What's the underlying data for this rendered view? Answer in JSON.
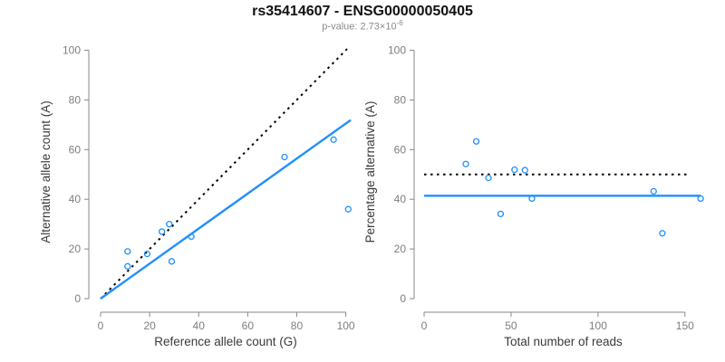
{
  "header": {
    "title": "rs35414607 - ENSG00000050405",
    "subtitle_main": "p-value: 2.73×10",
    "subtitle_exponent": "-6"
  },
  "colors": {
    "accent": "#1e90ff",
    "dotted_line": "#000000",
    "axis": "#898989",
    "tick_text": "#7e7e7e",
    "label_text": "#3a3a3a",
    "title_text": "#111111",
    "subtitle_text": "#8a8a8a"
  },
  "chart_data": [
    {
      "type": "scatter",
      "xlabel": "Reference allele count (G)",
      "ylabel": "Alternative allele count (A)",
      "xlim": [
        0,
        102
      ],
      "ylim": [
        0,
        102
      ],
      "xticks": [
        0,
        20,
        40,
        60,
        80,
        100
      ],
      "yticks": [
        0,
        20,
        40,
        60,
        80,
        100
      ],
      "grid": false,
      "point_color": "#1e90ff",
      "points": [
        [
          11,
          19
        ],
        [
          11,
          13
        ],
        [
          19,
          18
        ],
        [
          25,
          27
        ],
        [
          28,
          30
        ],
        [
          29,
          15
        ],
        [
          37,
          25
        ],
        [
          75,
          57
        ],
        [
          95,
          64
        ],
        [
          101,
          36
        ]
      ],
      "lines": [
        {
          "name": "identity-line",
          "style": "dotted",
          "color": "#000000",
          "from": [
            0,
            0
          ],
          "to": [
            101.5,
            101.5
          ]
        },
        {
          "name": "regression-line",
          "style": "solid",
          "color": "#1e90ff",
          "from": [
            0,
            0
          ],
          "to": [
            102,
            71.9
          ]
        }
      ]
    },
    {
      "type": "scatter",
      "xlabel": "Total number of reads",
      "ylabel": "Percentage alternative (A)",
      "xlim": [
        0,
        160
      ],
      "ylim": [
        0,
        102
      ],
      "xticks": [
        0,
        50,
        100,
        150
      ],
      "yticks": [
        0,
        20,
        40,
        60,
        80,
        100
      ],
      "grid": false,
      "point_color": "#1e90ff",
      "points": [
        [
          24,
          54.2
        ],
        [
          30,
          63.3
        ],
        [
          37,
          48.6
        ],
        [
          44,
          34.1
        ],
        [
          52,
          51.9
        ],
        [
          58,
          51.7
        ],
        [
          62,
          40.3
        ],
        [
          132,
          43.2
        ],
        [
          137,
          26.3
        ],
        [
          159,
          40.3
        ]
      ],
      "lines": [
        {
          "name": "expected-50pct-line",
          "style": "dotted",
          "color": "#000000",
          "from": [
            0,
            50
          ],
          "to": [
            153,
            50
          ]
        },
        {
          "name": "mean-percentage-line",
          "style": "solid",
          "color": "#1e90ff",
          "from": [
            0,
            41.4
          ],
          "to": [
            159,
            41.4
          ]
        }
      ]
    }
  ]
}
